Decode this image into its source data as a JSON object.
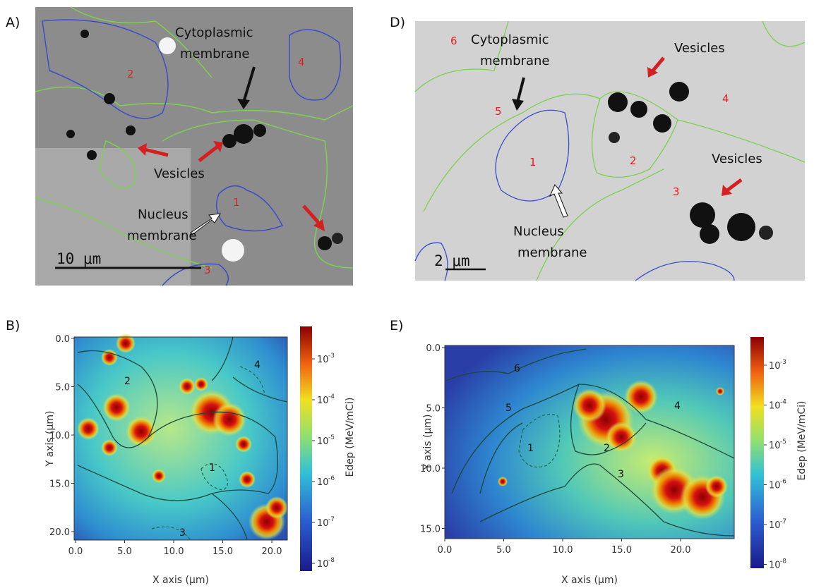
{
  "panels": {
    "A": {
      "letter": "A)",
      "labels": {
        "cytoplasmic": [
          "Cytoplasmic",
          "membrane"
        ],
        "vesicles": "Vesicles",
        "nucleus": [
          "Nucleus",
          "membrane"
        ]
      },
      "scale_bar": "10 μm",
      "regions": [
        "2",
        "4",
        "1",
        "3"
      ]
    },
    "D": {
      "letter": "D)",
      "labels": {
        "cytoplasmic": [
          "Cytoplasmic",
          "membrane"
        ],
        "vesicles": [
          "Vesicles",
          "Vesicles"
        ],
        "nucleus": [
          "Nucleus",
          "membrane"
        ]
      },
      "scale_bar": "2 μm",
      "regions": [
        "6",
        "5",
        "4",
        "1",
        "2",
        "3"
      ]
    },
    "B": {
      "letter": "B)",
      "x_label": "X axis (μm)",
      "y_label": "Y axis (μm)",
      "xticks": [
        "0.0",
        "5.0",
        "10.0",
        "15.0",
        "20.0"
      ],
      "yticks": [
        "0.0",
        "5.0",
        "10.0",
        "15.0",
        "20.0"
      ],
      "colorbar_label": "Edep (MeV/mCi)",
      "colorbar_ticks": [
        {
          "base": "10",
          "exponent": "-3"
        },
        {
          "base": "10",
          "exponent": "-4"
        },
        {
          "base": "10",
          "exponent": "-5"
        },
        {
          "base": "10",
          "exponent": "-6"
        },
        {
          "base": "10",
          "exponent": "-7"
        },
        {
          "base": "10",
          "exponent": "-8"
        }
      ],
      "regions": [
        "2",
        "4",
        "1",
        "3"
      ]
    },
    "E": {
      "letter": "E)",
      "x_label": "X axis (μm)",
      "y_label": "Y axis (μm)",
      "xticks": [
        "0.0",
        "5.0",
        "10.0",
        "15.0",
        "20.0"
      ],
      "yticks": [
        "0.0",
        "5.0",
        "10.0",
        "15.0"
      ],
      "colorbar_label": "Edep (MeV/mCi)",
      "colorbar_ticks": [
        {
          "base": "10",
          "exponent": "-3"
        },
        {
          "base": "10",
          "exponent": "-4"
        },
        {
          "base": "10",
          "exponent": "-5"
        },
        {
          "base": "10",
          "exponent": "-6"
        },
        {
          "base": "10",
          "exponent": "-7"
        },
        {
          "base": "10",
          "exponent": "-8"
        }
      ],
      "regions": [
        "6",
        "5",
        "1",
        "2",
        "3",
        "4"
      ]
    }
  }
}
